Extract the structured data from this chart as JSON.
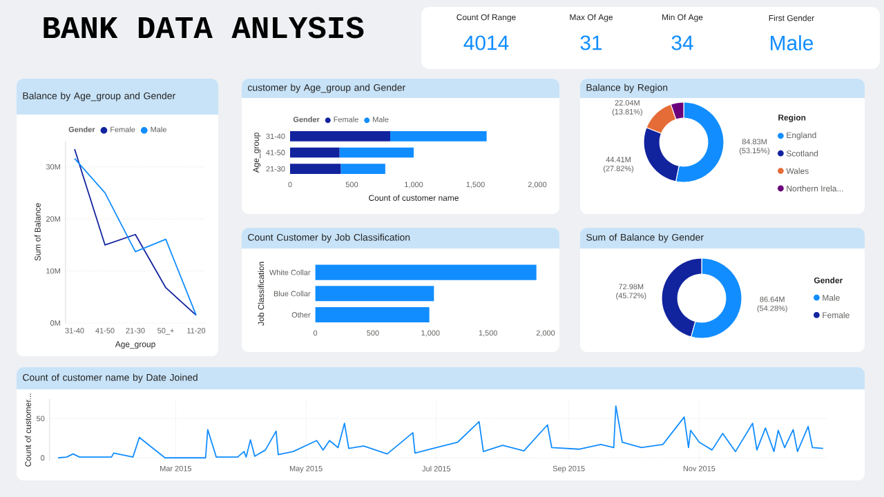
{
  "chart_data": [
    {
      "type": "other",
      "title": "BANK DATA ANLYSIS",
      "annotations": [
        "Count Of Range",
        "4014",
        "Max Of Age",
        "31",
        "Min Of Age",
        "34",
        "First Gender",
        "Male"
      ]
    },
    {
      "type": "line",
      "title": "Balance by Age_group and Gender",
      "xlabel": "Age_group",
      "ylabel": "Sum of Balance",
      "legend_title": "Gender",
      "legend": "top left",
      "grid": "y",
      "categories": [
        "31-40",
        "41-50",
        "21-30",
        "50_+",
        "11-20"
      ],
      "series": [
        {
          "name": "Female",
          "color": "#12239e",
          "values": [
            33.4,
            15.0,
            17.0,
            6.8,
            1.5
          ]
        },
        {
          "name": "Male",
          "color": "#118dff",
          "values": [
            31.6,
            25.0,
            13.7,
            16.1,
            1.5
          ]
        }
      ],
      "ylim": [
        0,
        35
      ],
      "yticks": [
        {
          "value": 0,
          "label": "0M"
        },
        {
          "value": 10,
          "label": "10M"
        },
        {
          "value": 20,
          "label": "20M"
        },
        {
          "value": 30,
          "label": "30M"
        }
      ]
    },
    {
      "type": "bar",
      "orientation": "horizontal",
      "stacked": true,
      "title": "customer by Age_group and Gender",
      "xlabel": "Count of customer name",
      "ylabel": "Age_group",
      "legend_title": "Gender",
      "legend": "top left",
      "categories": [
        "31-40",
        "41-50",
        "21-30"
      ],
      "series": [
        {
          "name": "Female",
          "color": "#12239e",
          "values": [
            810,
            400,
            410
          ]
        },
        {
          "name": "Male",
          "color": "#118dff",
          "values": [
            780,
            600,
            360
          ]
        }
      ],
      "xlim": [
        0,
        2000
      ],
      "xticks": [
        0,
        500,
        {
          "value": 1000,
          "label": "1,000"
        },
        {
          "value": 1500,
          "label": "1,500"
        },
        {
          "value": 2000,
          "label": "2,000"
        }
      ]
    },
    {
      "type": "bar",
      "orientation": "horizontal",
      "title": "Count Customer by Job Classification",
      "ylabel": "Job Classification",
      "categories": [
        "White Collar",
        "Blue Collar",
        "Other"
      ],
      "values": [
        1920,
        1030,
        990
      ],
      "color": "#118dff",
      "xlim": [
        0,
        2000
      ],
      "xticks": [
        0,
        500,
        {
          "value": 1000,
          "label": "1,000"
        },
        {
          "value": 1500,
          "label": "1,500"
        },
        {
          "value": 2000,
          "label": "2,000"
        }
      ]
    },
    {
      "type": "donut",
      "title": "Balance by Region",
      "legend_title": "Region",
      "legend": "right",
      "categories": [
        "England",
        "Scotland",
        "Wales",
        "Northern Irela..."
      ],
      "values": [
        53.15,
        27.82,
        13.81,
        5.22
      ],
      "colors": [
        "#118dff",
        "#12239e",
        "#e66c37",
        "#6b007b"
      ],
      "value_labels": [
        "84.83M (53.15%)",
        "44.41M (27.82%)",
        "22.04M (13.81%)",
        null
      ]
    },
    {
      "type": "donut",
      "title": "Sum of Balance by Gender",
      "legend_title": "Gender",
      "legend": "right",
      "categories": [
        "Male",
        "Female"
      ],
      "values": [
        54.28,
        45.72
      ],
      "colors": [
        "#118dff",
        "#12239e"
      ],
      "value_labels": [
        "86.64M (54.28%)",
        "72.98M (45.72%)"
      ]
    },
    {
      "type": "line",
      "title": "Count of customer name by Date Joined",
      "ylabel": "Count of customer...",
      "grid": true,
      "color": "#118dff",
      "x": [
        "2015-01-05",
        "2015-01-09",
        "2015-01-12",
        "2015-01-15",
        "2015-01-19",
        "2015-01-30",
        "2015-01-31",
        "2015-02-09",
        "2015-02-12",
        "2015-02-24",
        "2015-03-15",
        "2015-03-16",
        "2015-03-20",
        "2015-03-30",
        "2015-04-02",
        "2015-04-03",
        "2015-04-05",
        "2015-04-07",
        "2015-04-12",
        "2015-04-17",
        "2015-04-18",
        "2015-04-25",
        "2015-05-06",
        "2015-05-09",
        "2015-05-12",
        "2015-05-16",
        "2015-05-19",
        "2015-05-21",
        "2015-05-28",
        "2015-06-08",
        "2015-06-20",
        "2015-06-21",
        "2015-07-01",
        "2015-07-11",
        "2015-07-21",
        "2015-07-23",
        "2015-08-01",
        "2015-08-11",
        "2015-08-22",
        "2015-08-24",
        "2015-09-06",
        "2015-09-16",
        "2015-09-22",
        "2015-09-23",
        "2015-09-26",
        "2015-10-05",
        "2015-10-15",
        "2015-10-25",
        "2015-10-27",
        "2015-10-28",
        "2015-11-01",
        "2015-11-07",
        "2015-11-12",
        "2015-11-18",
        "2015-11-26",
        "2015-11-28",
        "2015-12-02",
        "2015-12-06",
        "2015-12-08",
        "2015-12-11",
        "2015-12-15",
        "2015-12-17",
        "2015-12-22",
        "2015-12-24",
        "2015-12-29"
      ],
      "values": [
        0,
        1,
        5,
        1,
        1,
        1,
        6,
        1,
        26,
        0,
        0,
        36,
        1,
        1,
        8,
        1,
        23,
        2,
        10,
        34,
        4,
        8,
        22,
        10,
        22,
        13,
        44,
        12,
        15,
        5,
        32,
        6,
        13,
        20,
        46,
        8,
        16,
        9,
        42,
        13,
        11,
        17,
        13,
        66,
        20,
        13,
        17,
        52,
        13,
        35,
        20,
        10,
        31,
        8,
        44,
        10,
        38,
        8,
        35,
        13,
        36,
        8,
        40,
        13,
        12
      ],
      "xlim": [
        "2015-01-01",
        "2015-12-31"
      ],
      "xticks": [
        {
          "value": "2015-03-01",
          "label": "Mar 2015"
        },
        {
          "value": "2015-05-01",
          "label": "May 2015"
        },
        {
          "value": "2015-07-01",
          "label": "Jul 2015"
        },
        {
          "value": "2015-09-01",
          "label": "Sep 2015"
        },
        {
          "value": "2015-11-01",
          "label": "Nov 2015"
        }
      ],
      "ylim": [
        -4,
        75
      ],
      "yticks": [
        0,
        50
      ]
    }
  ]
}
